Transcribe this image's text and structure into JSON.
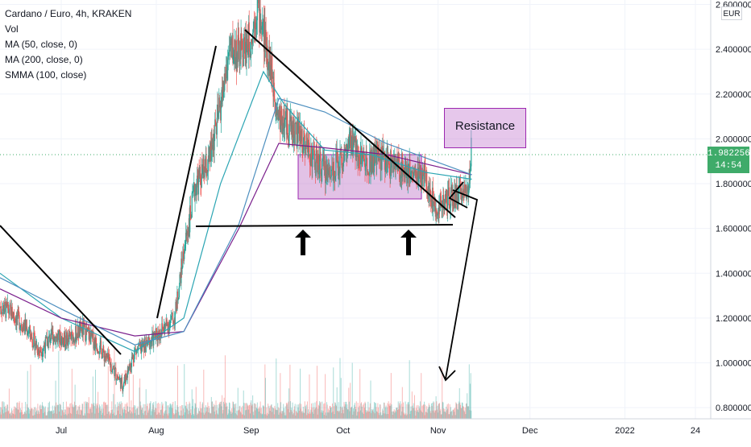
{
  "legend": {
    "title": "Cardano / Euro, 4h, KRAKEN",
    "vol": "Vol",
    "ma50": "MA (50, close, 0)",
    "ma200": "MA (200, close, 0)",
    "smma": "SMMA (100, close)"
  },
  "currency_button": "EUR",
  "current_price": {
    "price": "1.982256",
    "countdown": "14:54"
  },
  "annotation": {
    "resistance_label": "Resistance"
  },
  "colors": {
    "up": "#26a69a",
    "down": "#ef5350",
    "ma50": "#2ba5b3",
    "ma200": "#7b1f8c",
    "smma": "#4d8fbf",
    "box_fill": "rgba(190,120,200,0.45)",
    "box_stroke": "#9c27b0",
    "price_tag": "#3fab6a",
    "grid": "#f0f3fa"
  },
  "chart_data": {
    "type": "candlestick",
    "x_tick_labels": [
      "Jul",
      "Aug",
      "Sep",
      "Oct",
      "Nov",
      "Dec",
      "2022",
      "24"
    ],
    "x_ticks": [
      "2021-07-01",
      "2021-08-01",
      "2021-09-01",
      "2021-10-01",
      "2021-11-01",
      "2021-12-01",
      "2022-01-01",
      "2022-01-24"
    ],
    "y_tick_labels": [
      "2.600000",
      "2.400000",
      "2.200000",
      "2.000000",
      "1.800000",
      "1.600000",
      "1.400000",
      "1.200000",
      "1.000000",
      "0.800000"
    ],
    "ylim": [
      0.75,
      2.62
    ],
    "xlim": [
      "2021-06-11",
      "2022-01-29"
    ],
    "price_path": [
      [
        "2021-06-11",
        1.25
      ],
      [
        "2021-06-15",
        1.22
      ],
      [
        "2021-06-20",
        1.15
      ],
      [
        "2021-06-24",
        1.05
      ],
      [
        "2021-06-28",
        1.12
      ],
      [
        "2021-07-03",
        1.1
      ],
      [
        "2021-07-08",
        1.15
      ],
      [
        "2021-07-13",
        1.08
      ],
      [
        "2021-07-18",
        0.97
      ],
      [
        "2021-07-21",
        0.9
      ],
      [
        "2021-07-25",
        1.05
      ],
      [
        "2021-07-29",
        1.08
      ],
      [
        "2021-08-03",
        1.15
      ],
      [
        "2021-08-07",
        1.2
      ],
      [
        "2021-08-10",
        1.5
      ],
      [
        "2021-08-14",
        1.8
      ],
      [
        "2021-08-18",
        1.88
      ],
      [
        "2021-08-22",
        2.15
      ],
      [
        "2021-08-25",
        2.4
      ],
      [
        "2021-08-28",
        2.38
      ],
      [
        "2021-09-01",
        2.45
      ],
      [
        "2021-09-03",
        2.6
      ],
      [
        "2021-09-07",
        2.35
      ],
      [
        "2021-09-10",
        2.1
      ],
      [
        "2021-09-14",
        2.05
      ],
      [
        "2021-09-18",
        2.0
      ],
      [
        "2021-09-22",
        1.9
      ],
      [
        "2021-09-26",
        1.85
      ],
      [
        "2021-09-30",
        1.9
      ],
      [
        "2021-10-04",
        1.98
      ],
      [
        "2021-10-08",
        1.9
      ],
      [
        "2021-10-13",
        1.92
      ],
      [
        "2021-10-18",
        1.88
      ],
      [
        "2021-10-23",
        1.86
      ],
      [
        "2021-10-28",
        1.82
      ],
      [
        "2021-10-31",
        1.7
      ],
      [
        "2021-11-04",
        1.72
      ],
      [
        "2021-11-08",
        1.75
      ],
      [
        "2021-11-11",
        1.8
      ],
      [
        "2021-11-12",
        1.98
      ]
    ],
    "series": [
      {
        "name": "MA (50, close, 0)",
        "path": [
          [
            "2021-06-11",
            1.4
          ],
          [
            "2021-07-01",
            1.2
          ],
          [
            "2021-07-25",
            1.05
          ],
          [
            "2021-08-10",
            1.2
          ],
          [
            "2021-08-22",
            1.8
          ],
          [
            "2021-09-05",
            2.3
          ],
          [
            "2021-09-12",
            2.15
          ],
          [
            "2021-09-25",
            1.95
          ],
          [
            "2021-10-10",
            1.93
          ],
          [
            "2021-10-28",
            1.85
          ],
          [
            "2021-11-12",
            1.82
          ]
        ]
      },
      {
        "name": "MA (200, close, 0)",
        "path": [
          [
            "2021-06-11",
            1.33
          ],
          [
            "2021-07-01",
            1.2
          ],
          [
            "2021-07-25",
            1.12
          ],
          [
            "2021-08-10",
            1.14
          ],
          [
            "2021-08-28",
            1.6
          ],
          [
            "2021-09-10",
            1.98
          ],
          [
            "2021-09-25",
            1.96
          ],
          [
            "2021-10-15",
            1.93
          ],
          [
            "2021-11-12",
            1.84
          ]
        ]
      },
      {
        "name": "SMMA (100, close)",
        "path": [
          [
            "2021-06-11",
            1.38
          ],
          [
            "2021-07-01",
            1.24
          ],
          [
            "2021-07-25",
            1.08
          ],
          [
            "2021-08-10",
            1.14
          ],
          [
            "2021-08-28",
            1.62
          ],
          [
            "2021-09-10",
            2.18
          ],
          [
            "2021-09-25",
            2.12
          ],
          [
            "2021-10-15",
            1.98
          ],
          [
            "2021-11-12",
            1.84
          ]
        ]
      }
    ]
  }
}
